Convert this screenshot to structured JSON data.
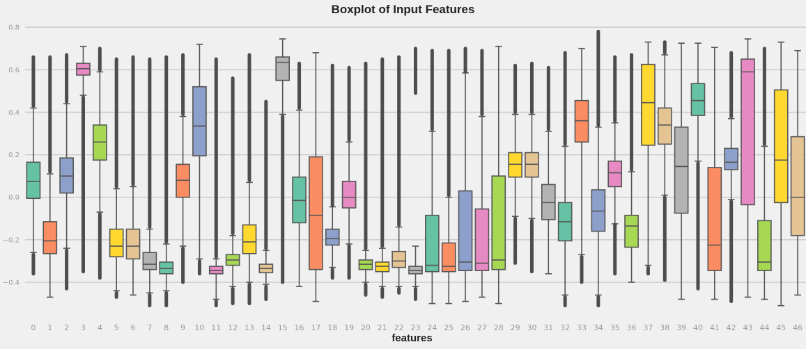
{
  "chart_data": {
    "type": "boxplot",
    "title": "Boxplot of Input Features",
    "xlabel": "features",
    "ylabel": "",
    "ylim": [
      -0.57,
      0.83
    ],
    "yticks": [
      -0.4,
      -0.2,
      0.0,
      0.2,
      0.4,
      0.6,
      0.8
    ],
    "ytick_labels": [
      "−0.4",
      "−0.2",
      "0.0",
      "0.2",
      "0.4",
      "0.6",
      "0.8"
    ],
    "grid": true,
    "categories": [
      "0",
      "1",
      "2",
      "3",
      "4",
      "5",
      "6",
      "7",
      "8",
      "9",
      "10",
      "11",
      "12",
      "13",
      "14",
      "15",
      "16",
      "17",
      "18",
      "19",
      "20",
      "21",
      "22",
      "23",
      "24",
      "25",
      "26",
      "27",
      "28",
      "29",
      "30",
      "31",
      "32",
      "33",
      "34",
      "35",
      "36",
      "37",
      "38",
      "39",
      "40",
      "41",
      "42",
      "43",
      "44",
      "45",
      "46"
    ],
    "palette": [
      "#66c2a5",
      "#fc8d62",
      "#8da0cb",
      "#e78ac3",
      "#a6d854",
      "#ffd92f",
      "#e5c494",
      "#b3b3b3"
    ],
    "boxes": [
      {
        "whislo": -0.26,
        "q1": -0.005,
        "med": 0.075,
        "q3": 0.165,
        "whishi": 0.42,
        "flo": [
          -0.36,
          -0.27
        ],
        "fhi": [
          0.43,
          0.66
        ]
      },
      {
        "whislo": -0.47,
        "q1": -0.265,
        "med": -0.205,
        "q3": -0.115,
        "whishi": 0.11,
        "flo": [],
        "fhi": [
          0.12,
          0.66
        ]
      },
      {
        "whislo": -0.24,
        "q1": 0.02,
        "med": 0.1,
        "q3": 0.185,
        "whishi": 0.44,
        "flo": [
          -0.43,
          -0.25
        ],
        "fhi": [
          0.45,
          0.67
        ]
      },
      {
        "whislo": 0.48,
        "q1": 0.575,
        "med": 0.605,
        "q3": 0.63,
        "whishi": 0.71,
        "flo": [
          -0.35,
          0.47
        ],
        "fhi": []
      },
      {
        "whislo": -0.07,
        "q1": 0.175,
        "med": 0.26,
        "q3": 0.34,
        "whishi": 0.59,
        "flo": [
          -0.38,
          -0.08
        ],
        "fhi": [
          0.6,
          0.7
        ]
      },
      {
        "whislo": -0.44,
        "q1": -0.28,
        "med": -0.23,
        "q3": -0.15,
        "whishi": 0.04,
        "flo": [
          -0.47,
          -0.45
        ],
        "fhi": [
          0.05,
          0.65
        ]
      },
      {
        "whislo": -0.46,
        "q1": -0.29,
        "med": -0.23,
        "q3": -0.15,
        "whishi": 0.05,
        "flo": [],
        "fhi": [
          0.06,
          0.66
        ]
      },
      {
        "whislo": -0.45,
        "q1": -0.34,
        "med": -0.315,
        "q3": -0.26,
        "whishi": -0.15,
        "flo": [
          -0.51,
          -0.46
        ],
        "fhi": [
          -0.14,
          0.65
        ]
      },
      {
        "whislo": -0.44,
        "q1": -0.36,
        "med": -0.335,
        "q3": -0.305,
        "whishi": -0.22,
        "flo": [
          -0.51,
          -0.45
        ],
        "fhi": [
          -0.21,
          0.66
        ]
      },
      {
        "whislo": -0.23,
        "q1": 0.0,
        "med": 0.08,
        "q3": 0.155,
        "whishi": 0.38,
        "flo": [
          -0.4,
          -0.24
        ],
        "fhi": [
          0.39,
          0.67
        ]
      },
      {
        "whislo": -0.29,
        "q1": 0.195,
        "med": 0.335,
        "q3": 0.52,
        "whishi": 0.72,
        "flo": [
          -0.36,
          -0.3
        ],
        "fhi": []
      },
      {
        "whislo": -0.48,
        "q1": -0.36,
        "med": -0.345,
        "q3": -0.325,
        "whishi": -0.29,
        "flo": [
          -0.51,
          -0.49
        ],
        "fhi": [
          -0.28,
          0.65
        ]
      },
      {
        "whislo": -0.42,
        "q1": -0.32,
        "med": -0.295,
        "q3": -0.27,
        "whishi": -0.18,
        "flo": [
          -0.5,
          -0.43
        ],
        "fhi": [
          -0.17,
          0.56
        ]
      },
      {
        "whislo": -0.4,
        "q1": -0.265,
        "med": -0.21,
        "q3": -0.13,
        "whishi": 0.07,
        "flo": [
          -0.5,
          -0.41
        ],
        "fhi": [
          0.08,
          0.67
        ]
      },
      {
        "whislo": -0.41,
        "q1": -0.355,
        "med": -0.335,
        "q3": -0.315,
        "whishi": -0.25,
        "flo": [
          -0.48,
          -0.42
        ],
        "fhi": [
          -0.24,
          0.45
        ]
      },
      {
        "whislo": 0.39,
        "q1": 0.55,
        "med": 0.635,
        "q3": 0.66,
        "whishi": 0.745,
        "flo": [
          -0.4,
          0.38
        ],
        "fhi": []
      },
      {
        "whislo": -0.42,
        "q1": -0.12,
        "med": -0.015,
        "q3": 0.095,
        "whishi": 0.41,
        "flo": [],
        "fhi": [
          0.42,
          0.63
        ]
      },
      {
        "whislo": -0.49,
        "q1": -0.34,
        "med": -0.085,
        "q3": 0.19,
        "whishi": 0.68,
        "flo": [],
        "fhi": []
      },
      {
        "whislo": -0.33,
        "q1": -0.225,
        "med": -0.195,
        "q3": -0.15,
        "whishi": -0.045,
        "flo": [
          -0.38,
          -0.34
        ],
        "fhi": [
          -0.04,
          0.62
        ]
      },
      {
        "whislo": -0.22,
        "q1": -0.05,
        "med": 0.0,
        "q3": 0.075,
        "whishi": 0.26,
        "flo": [
          -0.38,
          -0.23
        ],
        "fhi": [
          0.27,
          0.61
        ]
      },
      {
        "whislo": -0.4,
        "q1": -0.34,
        "med": -0.315,
        "q3": -0.295,
        "whishi": -0.25,
        "flo": [
          -0.46,
          -0.41
        ],
        "fhi": [
          -0.24,
          0.63
        ]
      },
      {
        "whislo": -0.42,
        "q1": -0.35,
        "med": -0.325,
        "q3": -0.305,
        "whishi": -0.24,
        "flo": [
          -0.47,
          -0.43
        ],
        "fhi": [
          -0.23,
          0.65
        ]
      },
      {
        "whislo": -0.42,
        "q1": -0.33,
        "med": -0.3,
        "q3": -0.255,
        "whishi": -0.14,
        "flo": [
          -0.45,
          -0.43
        ],
        "fhi": [
          -0.13,
          0.66
        ]
      },
      {
        "whislo": -0.42,
        "q1": -0.36,
        "med": -0.345,
        "q3": -0.325,
        "whishi": -0.23,
        "flo": [
          -0.48,
          -0.43
        ],
        "fhi": [
          0.49,
          0.7
        ]
      },
      {
        "whislo": -0.5,
        "q1": -0.35,
        "med": -0.32,
        "q3": -0.085,
        "whishi": 0.31,
        "flo": [],
        "fhi": [
          0.32,
          0.69
        ]
      },
      {
        "whislo": -0.5,
        "q1": -0.35,
        "med": -0.325,
        "q3": -0.215,
        "whishi": 0.0,
        "flo": [],
        "fhi": [
          0.01,
          0.69
        ]
      },
      {
        "whislo": -0.49,
        "q1": -0.345,
        "med": -0.305,
        "q3": 0.03,
        "whishi": 0.585,
        "flo": [],
        "fhi": [
          0.59,
          0.7
        ]
      },
      {
        "whislo": -0.47,
        "q1": -0.345,
        "med": -0.31,
        "q3": -0.055,
        "whishi": 0.38,
        "flo": [],
        "fhi": [
          0.39,
          0.69
        ]
      },
      {
        "whislo": -0.5,
        "q1": -0.34,
        "med": -0.295,
        "q3": 0.1,
        "whishi": 0.71,
        "flo": [],
        "fhi": []
      },
      {
        "whislo": -0.09,
        "q1": 0.095,
        "med": 0.155,
        "q3": 0.21,
        "whishi": 0.39,
        "flo": [
          -0.31,
          -0.1
        ],
        "fhi": [
          0.4,
          0.62
        ]
      },
      {
        "whislo": -0.1,
        "q1": 0.095,
        "med": 0.155,
        "q3": 0.21,
        "whishi": 0.39,
        "flo": [
          -0.35,
          -0.11
        ],
        "fhi": [
          0.4,
          0.63
        ]
      },
      {
        "whislo": -0.36,
        "q1": -0.105,
        "med": -0.025,
        "q3": 0.06,
        "whishi": 0.31,
        "flo": [],
        "fhi": [
          0.32,
          0.61
        ]
      },
      {
        "whislo": -0.46,
        "q1": -0.205,
        "med": -0.115,
        "q3": -0.025,
        "whishi": 0.24,
        "flo": [
          -0.51,
          -0.47
        ],
        "fhi": [
          0.25,
          0.68
        ]
      },
      {
        "whislo": -0.27,
        "q1": 0.26,
        "med": 0.36,
        "q3": 0.455,
        "whishi": 0.7,
        "flo": [
          -0.4,
          -0.28
        ],
        "fhi": []
      },
      {
        "whislo": -0.46,
        "q1": -0.16,
        "med": -0.065,
        "q3": 0.035,
        "whishi": 0.33,
        "flo": [
          -0.51,
          -0.47
        ],
        "fhi": [
          0.34,
          0.78
        ]
      },
      {
        "whislo": -0.125,
        "q1": 0.05,
        "med": 0.115,
        "q3": 0.17,
        "whishi": 0.35,
        "flo": [
          -0.36,
          -0.13
        ],
        "fhi": [
          0.36,
          0.66
        ]
      },
      {
        "whislo": -0.4,
        "q1": -0.235,
        "med": -0.135,
        "q3": -0.085,
        "whishi": 0.12,
        "flo": [],
        "fhi": [
          0.13,
          0.67
        ]
      },
      {
        "whislo": -0.32,
        "q1": 0.245,
        "med": 0.445,
        "q3": 0.625,
        "whishi": 0.73,
        "flo": [
          -0.36,
          -0.33
        ],
        "fhi": []
      },
      {
        "whislo": 0.01,
        "q1": 0.25,
        "med": 0.34,
        "q3": 0.42,
        "whishi": 0.67,
        "flo": [
          -0.39,
          0.0
        ],
        "fhi": [
          0.68,
          0.73
        ]
      },
      {
        "whislo": -0.48,
        "q1": -0.075,
        "med": 0.145,
        "q3": 0.33,
        "whishi": 0.725,
        "flo": [],
        "fhi": []
      },
      {
        "whislo": 0.17,
        "q1": 0.385,
        "med": 0.455,
        "q3": 0.535,
        "whishi": 0.725,
        "flo": [
          -0.43,
          0.16
        ],
        "fhi": []
      },
      {
        "whislo": -0.48,
        "q1": -0.345,
        "med": -0.225,
        "q3": 0.14,
        "whishi": 0.705,
        "flo": [],
        "fhi": []
      },
      {
        "whislo": -0.01,
        "q1": 0.13,
        "med": 0.165,
        "q3": 0.23,
        "whishi": 0.37,
        "flo": [
          -0.49,
          -0.02
        ],
        "fhi": [
          0.38,
          0.68
        ]
      },
      {
        "whislo": -0.47,
        "q1": -0.035,
        "med": 0.59,
        "q3": 0.65,
        "whishi": 0.745,
        "flo": [],
        "fhi": []
      },
      {
        "whislo": -0.48,
        "q1": -0.345,
        "med": -0.305,
        "q3": -0.11,
        "whishi": 0.24,
        "flo": [],
        "fhi": [
          0.25,
          0.7
        ]
      },
      {
        "whislo": -0.51,
        "q1": -0.025,
        "med": 0.175,
        "q3": 0.505,
        "whishi": 0.73,
        "flo": [],
        "fhi": []
      },
      {
        "whislo": -0.46,
        "q1": -0.18,
        "med": 0.0,
        "q3": 0.285,
        "whishi": 0.69,
        "flo": [],
        "fhi": []
      }
    ]
  }
}
